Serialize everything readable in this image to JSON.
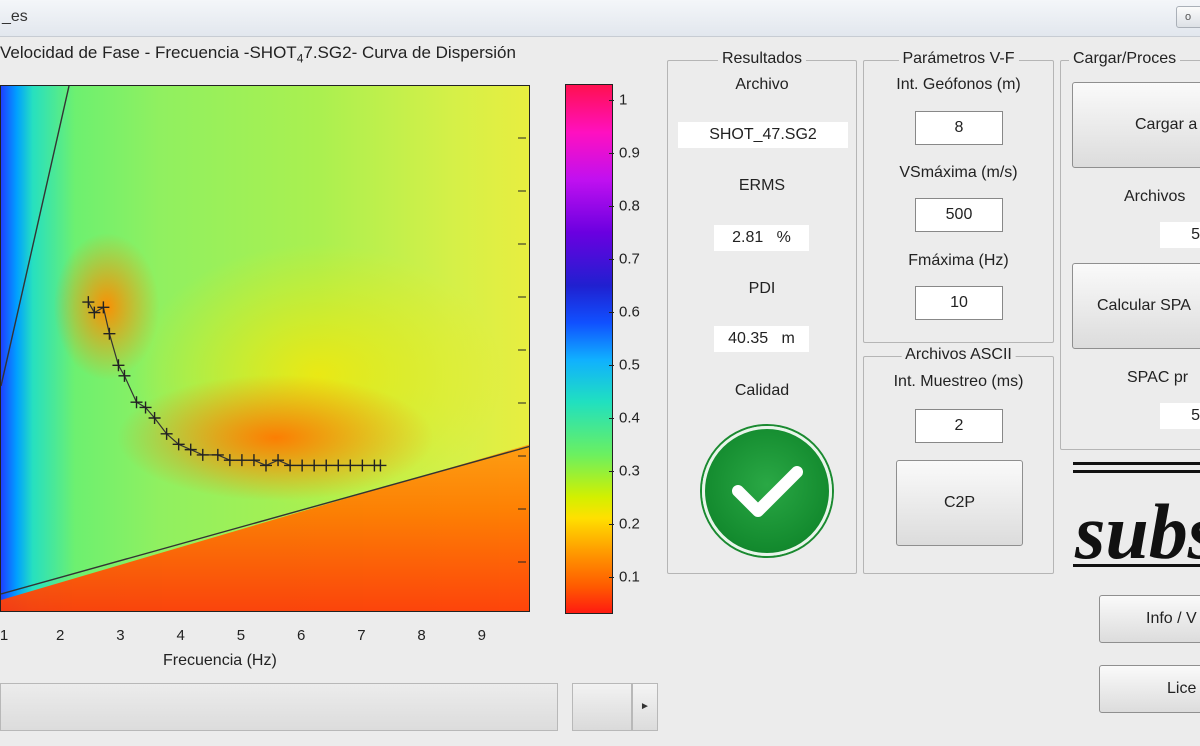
{
  "window": {
    "title_fragment": "_es",
    "control_label": "o"
  },
  "plot": {
    "title_pre": "Velocidad de Fase - Frecuencia -SHOT",
    "title_sub": "4",
    "title_post": "7.SG2- Curva de Dispersión",
    "xlabel": "Frecuencia (Hz)",
    "x_ticks": [
      "1",
      "2",
      "3",
      "4",
      "5",
      "6",
      "7",
      "8",
      "9"
    ],
    "x_range": [
      1,
      9.8
    ],
    "picks": [
      {
        "f": 2.45,
        "v": 0.62
      },
      {
        "f": 2.55,
        "v": 0.6
      },
      {
        "f": 2.7,
        "v": 0.61
      },
      {
        "f": 2.8,
        "v": 0.56
      },
      {
        "f": 2.95,
        "v": 0.5
      },
      {
        "f": 3.05,
        "v": 0.48
      },
      {
        "f": 3.25,
        "v": 0.43
      },
      {
        "f": 3.4,
        "v": 0.42
      },
      {
        "f": 3.55,
        "v": 0.4
      },
      {
        "f": 3.75,
        "v": 0.37
      },
      {
        "f": 3.95,
        "v": 0.35
      },
      {
        "f": 4.15,
        "v": 0.34
      },
      {
        "f": 4.35,
        "v": 0.33
      },
      {
        "f": 4.6,
        "v": 0.33
      },
      {
        "f": 4.8,
        "v": 0.32
      },
      {
        "f": 5.0,
        "v": 0.32
      },
      {
        "f": 5.2,
        "v": 0.32
      },
      {
        "f": 5.4,
        "v": 0.31
      },
      {
        "f": 5.6,
        "v": 0.32
      },
      {
        "f": 5.8,
        "v": 0.31
      },
      {
        "f": 6.0,
        "v": 0.31
      },
      {
        "f": 6.2,
        "v": 0.31
      },
      {
        "f": 6.4,
        "v": 0.31
      },
      {
        "f": 6.6,
        "v": 0.31
      },
      {
        "f": 6.8,
        "v": 0.31
      },
      {
        "f": 7.0,
        "v": 0.31
      },
      {
        "f": 7.2,
        "v": 0.31
      },
      {
        "f": 7.3,
        "v": 0.31
      }
    ]
  },
  "colorbar": {
    "labels": [
      "1",
      "0.9",
      "0.8",
      "0.7",
      "0.6",
      "0.5",
      "0.4",
      "0.3",
      "0.2",
      "0.1"
    ],
    "range": [
      0.03,
      1.03
    ]
  },
  "resultados": {
    "legend": "Resultados",
    "archivo_label": "Archivo",
    "archivo_value": "SHOT_47.SG2",
    "erms_label": "ERMS",
    "erms_value": "2.81   %",
    "pdi_label": "PDI",
    "pdi_value": "40.35   m",
    "calidad_label": "Calidad",
    "calidad_icon": "check-icon"
  },
  "parametros": {
    "legend": "Parámetros V-F",
    "geofonos_label": "Int. Geófonos (m)",
    "geofonos_value": "8",
    "vsmax_label": "VSmáxima (m/s)",
    "vsmax_value": "500",
    "fmax_label": "Fmáxima (Hz)",
    "fmax_value": "10"
  },
  "ascii": {
    "legend": "Archivos ASCII",
    "muestreo_label": "Int. Muestreo (ms)",
    "muestreo_value": "2",
    "c2p_label": "C2P"
  },
  "cargar": {
    "legend": "Cargar/Proces",
    "cargar_btn": "Cargar a",
    "archivos_label": "Archivos",
    "archivos_value": "5",
    "calcular_btn": "Calcular SPA",
    "spac_label": "SPAC pr",
    "spac_value": "5"
  },
  "logo": {
    "text": "subsu"
  },
  "buttons": {
    "info": "Info / V",
    "licencia": "Lice"
  },
  "scrollbar": {
    "arrow": "►"
  }
}
